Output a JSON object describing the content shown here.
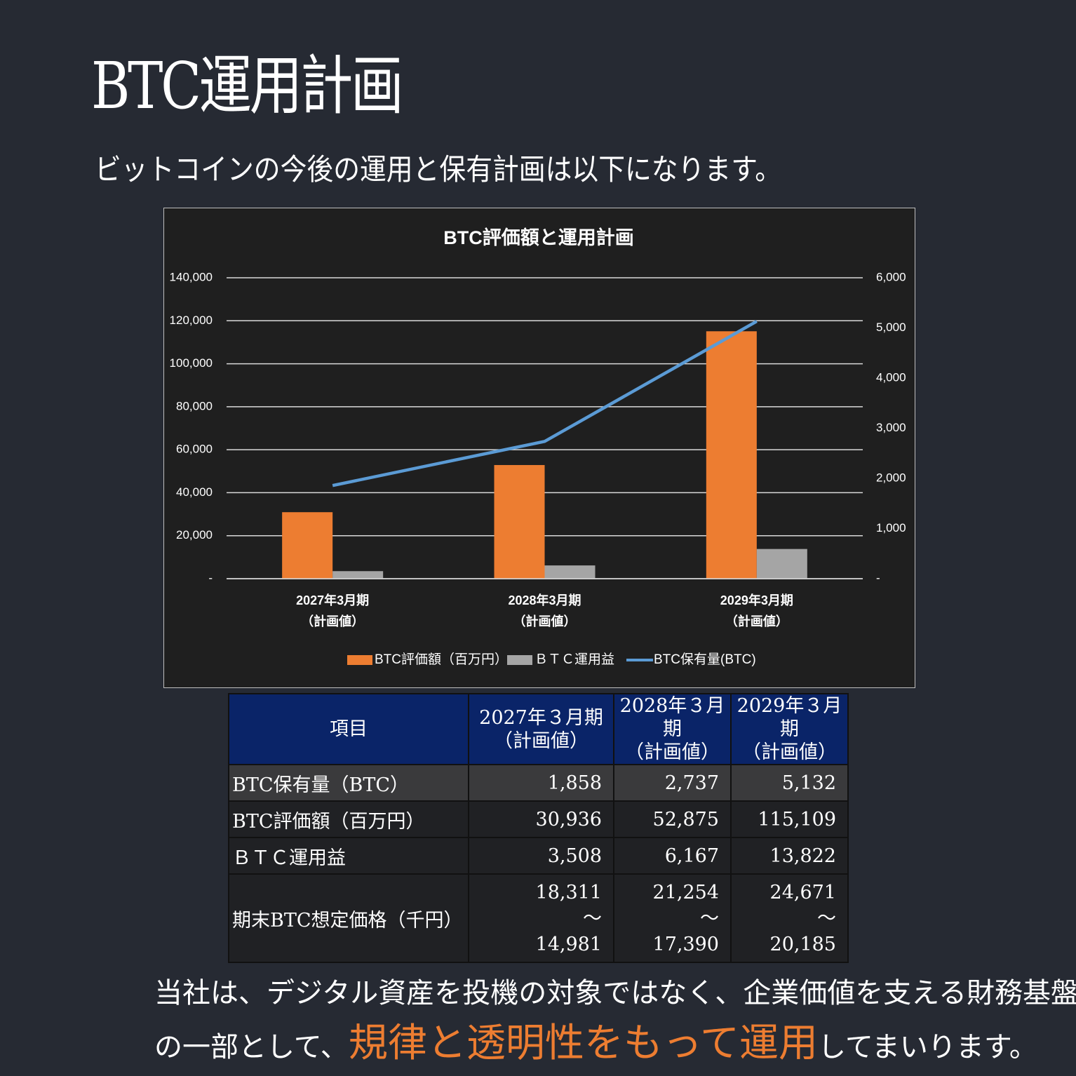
{
  "title": "BTC運用計画",
  "subtitle": "ビットコインの今後の運用と保有計画は以下になります。",
  "chart_data": {
    "type": "bar",
    "title": "BTC評価額と運用計画",
    "categories": [
      [
        "2027年3月期",
        "（計画値）"
      ],
      [
        "2028年3月期",
        "（計画値）"
      ],
      [
        "2029年3月期",
        "（計画値）"
      ]
    ],
    "series": [
      {
        "name": "BTC評価額（百万円）",
        "color": "#ed7d31",
        "type": "bar",
        "values": [
          30936,
          52875,
          115109
        ]
      },
      {
        "name": "ＢＴＣ運用益",
        "color": "#a5a5a5",
        "type": "bar",
        "values": [
          3508,
          6167,
          13822
        ]
      },
      {
        "name": "BTC保有量(BTC)",
        "color": "#5b9bd5",
        "type": "line",
        "axis": "y2",
        "values": [
          1858,
          2737,
          5132
        ]
      }
    ],
    "ylim": [
      0,
      140000
    ],
    "yticks": [
      {
        "value": 0,
        "label": "-"
      },
      {
        "value": 20000,
        "label": "20,000"
      },
      {
        "value": 40000,
        "label": "40,000"
      },
      {
        "value": 60000,
        "label": "60,000"
      },
      {
        "value": 80000,
        "label": "80,000"
      },
      {
        "value": 100000,
        "label": "100,000"
      },
      {
        "value": 120000,
        "label": "120,000"
      },
      {
        "value": 140000,
        "label": "140,000"
      }
    ],
    "y2lim": [
      0,
      6000
    ],
    "y2ticks": [
      {
        "value": 0,
        "label": "-"
      },
      {
        "value": 1000,
        "label": "1,000"
      },
      {
        "value": 2000,
        "label": "2,000"
      },
      {
        "value": 3000,
        "label": "3,000"
      },
      {
        "value": 4000,
        "label": "4,000"
      },
      {
        "value": 5000,
        "label": "5,000"
      },
      {
        "value": 6000,
        "label": "6,000"
      }
    ],
    "grid": true,
    "legend": "bottom"
  },
  "table": {
    "header": [
      "項目",
      [
        "2027年３月期",
        "（計画値）"
      ],
      [
        "2028年３月期",
        "（計画値）"
      ],
      [
        "2029年３月期",
        "（計画値）"
      ]
    ],
    "rows": [
      [
        "BTC保有量（BTC）",
        "1,858",
        "2,737",
        "5,132"
      ],
      [
        "BTC評価額（百万円）",
        "30,936",
        "52,875",
        "115,109"
      ],
      [
        "ＢＴＣ運用益",
        "3,508",
        "6,167",
        "13,822"
      ],
      [
        "期末BTC想定価格（千円）",
        [
          "18,311",
          "～",
          "14,981"
        ],
        [
          "21,254",
          "～",
          "17,390"
        ],
        [
          "24,671",
          "～",
          "20,185"
        ]
      ]
    ]
  },
  "footer": {
    "line1": "当社は、デジタル資産を投機の対象ではなく、企業価値を支える財務基盤",
    "line2_before": "の一部として、",
    "highlight": "規律と透明性をもって運用",
    "line2_after": "してまいります。"
  }
}
